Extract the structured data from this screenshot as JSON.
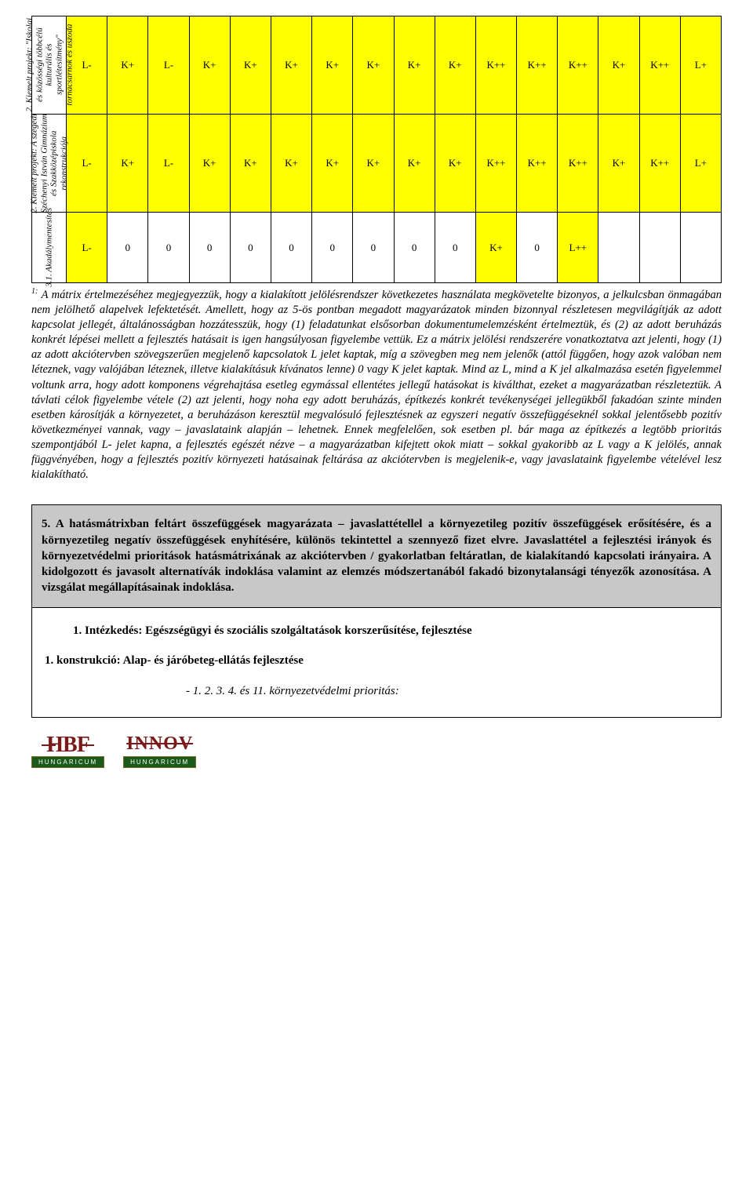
{
  "matrix": {
    "rows": [
      {
        "header": "2. Kiemelt projekt: \"Iskolai és közösségi többcélú kulturális és sportlétesítmény\" tornacsarnok és uszoda",
        "cells": [
          {
            "v": "L-",
            "hl": true
          },
          {
            "v": "K+",
            "hl": true
          },
          {
            "v": "L-",
            "hl": true
          },
          {
            "v": "K+",
            "hl": true
          },
          {
            "v": "K+",
            "hl": true
          },
          {
            "v": "K+",
            "hl": true
          },
          {
            "v": "K+",
            "hl": true
          },
          {
            "v": "K+",
            "hl": true
          },
          {
            "v": "K+",
            "hl": true
          },
          {
            "v": "K+",
            "hl": true
          },
          {
            "v": "K++",
            "hl": true
          },
          {
            "v": "K++",
            "hl": true
          },
          {
            "v": "K++",
            "hl": true
          },
          {
            "v": "K+",
            "hl": true
          },
          {
            "v": "K++",
            "hl": true
          },
          {
            "v": "L+",
            "hl": true
          }
        ]
      },
      {
        "header": "2. Kiemelt projekt: A szegedi Széchenyi István Gimnázium és Szakközépiskola rekonstrukciója",
        "cells": [
          {
            "v": "L-",
            "hl": true
          },
          {
            "v": "K+",
            "hl": true
          },
          {
            "v": "L-",
            "hl": true
          },
          {
            "v": "K+",
            "hl": true
          },
          {
            "v": "K+",
            "hl": true
          },
          {
            "v": "K+",
            "hl": true
          },
          {
            "v": "K+",
            "hl": true
          },
          {
            "v": "K+",
            "hl": true
          },
          {
            "v": "K+",
            "hl": true
          },
          {
            "v": "K+",
            "hl": true
          },
          {
            "v": "K++",
            "hl": true
          },
          {
            "v": "K++",
            "hl": true
          },
          {
            "v": "K++",
            "hl": true
          },
          {
            "v": "K+",
            "hl": true
          },
          {
            "v": "K++",
            "hl": true
          },
          {
            "v": "L+",
            "hl": true
          }
        ]
      },
      {
        "header": "3.1. Akadálymentesítés",
        "cells": [
          {
            "v": "L-",
            "hl": true
          },
          {
            "v": "0",
            "hl": false
          },
          {
            "v": "0",
            "hl": false
          },
          {
            "v": "0",
            "hl": false
          },
          {
            "v": "0",
            "hl": false
          },
          {
            "v": "0",
            "hl": false
          },
          {
            "v": "0",
            "hl": false
          },
          {
            "v": "0",
            "hl": false
          },
          {
            "v": "0",
            "hl": false
          },
          {
            "v": "0",
            "hl": false
          },
          {
            "v": "K+",
            "hl": true
          },
          {
            "v": "0",
            "hl": false
          },
          {
            "v": "L++",
            "hl": true
          },
          {
            "v": "",
            "hl": false
          },
          {
            "v": "",
            "hl": false
          },
          {
            "v": "",
            "hl": false
          }
        ]
      }
    ]
  },
  "footnote_sup": "1:",
  "footnote": "A mátrix értelmezéséhez megjegyezzük, hogy a kialakított jelölésrendszer következetes használata megkövetelte bizonyos, a jelkulcsban önmagában nem jelölhető alapelvek lefektetését. Amellett, hogy az 5-ös pontban megadott magyarázatok minden bizonnyal részletesen megvilágítják az adott kapcsolat jellegét, általánosságban hozzátesszük, hogy (1) feladatunkat elsősorban dokumentumelemzésként értelmeztük, és (2) az adott beruházás konkrét lépései mellett a fejlesztés hatásait is igen hangsúlyosan figyelembe vettük. Ez a mátrix jelölési rendszerére vonatkoztatva azt jelenti, hogy (1) az adott akciótervben szövegszerűen megjelenő kapcsolatok L jelet kaptak, míg a szövegben meg nem jelenők (attól függően, hogy azok valóban nem léteznek, vagy valójában léteznek, illetve kialakításuk kívánatos lenne) 0 vagy K jelet kaptak. Mind az L, mind a K jel alkalmazása esetén figyelemmel voltunk arra, hogy adott komponens végrehajtása esetleg egymással ellentétes jellegű hatásokat is kiválthat, ezeket a magyarázatban részleteztük. A távlati célok figyelembe vétele (2) azt jelenti, hogy noha egy adott beruházás, építkezés konkrét tevékenységei jellegükből fakadóan szinte minden esetben károsítják a környezetet, a beruházáson keresztül megvalósuló fejlesztésnek az egyszeri negatív összefüggéseknél sokkal jelentősebb pozitív következményei vannak, vagy – javaslataink alapján – lehetnek. Ennek megfelelően, sok esetben pl. bár maga az építkezés a legtöbb prioritás szempontjából L- jelet kapna, a fejlesztés egészét nézve – a magyarázatban kifejtett okok miatt – sokkal gyakoribb az L vagy a K jelölés, annak függvényében, hogy a fejlesztés pozitív környezeti hatásainak feltárása az akciótervben is megjelenik-e, vagy javaslataink figyelembe vételével lesz kialakítható.",
  "section5": "5. A hatásmátrixban feltárt összefüggések magyarázata – javaslattétellel a környezetileg pozitív összefüggések erősítésére, és a környezetileg negatív összefüggések enyhítésére, különös tekintettel a szennyező fizet elvre. Javaslattétel a fejlesztési irányok és környezetvédelmi prioritások hatásmátrixának az akciótervben / gyakorlatban feltáratlan, de kialakítandó kapcsolati irányaira. A kidolgozott és javasolt alternatívák indoklása valamint az elemzés módszertanából fakadó bizonytalansági tényezők azonosítása. A vizsgálat megállapításainak indoklása.",
  "body": {
    "line1": "1.   Intézkedés: Egészségügyi és szociális szolgáltatások korszerűsítése, fejlesztése",
    "line2": "1. konstrukció: Alap- és járóbeteg-ellátás fejlesztése",
    "line3": "-     1. 2. 3. 4. és 11. környezetvédelmi prioritás:"
  },
  "logos": {
    "hbf": "HBF",
    "innov": "INNOV",
    "band": "HUNGARICUM"
  },
  "colors": {
    "highlight": "#ffff00",
    "section_bg": "#c8c8c8",
    "logo_red": "#7a1a1a",
    "logo_green": "#1a5a1a"
  }
}
